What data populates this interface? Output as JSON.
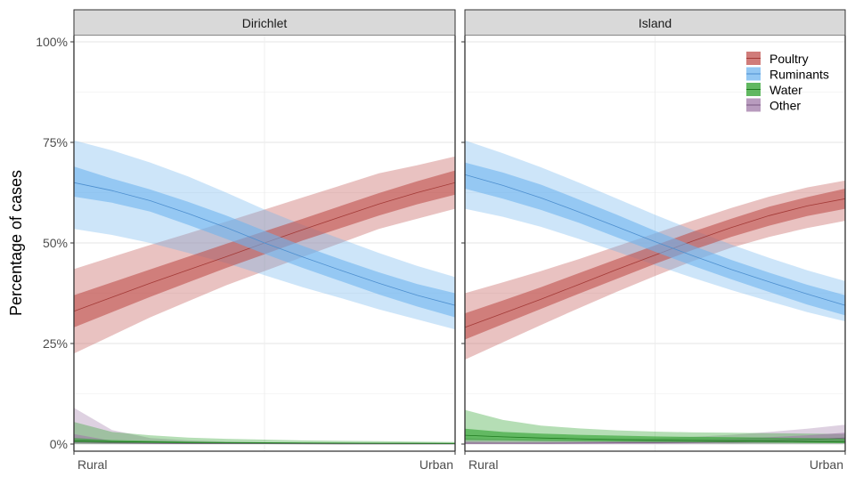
{
  "chart_data": {
    "type": "area",
    "ylabel": "Percentage of cases",
    "x_categories": [
      "Rural",
      "Urban"
    ],
    "y_ticks": [
      "0%",
      "25%",
      "50%",
      "75%",
      "100%"
    ],
    "y_tick_values": [
      0,
      25,
      50,
      75,
      100
    ],
    "ylim": [
      0,
      100
    ],
    "x": [
      0,
      0.1,
      0.2,
      0.3,
      0.4,
      0.5,
      0.6,
      0.7,
      0.8,
      0.9,
      1.0
    ],
    "legend": {
      "placement": "top-right-inside-second-panel"
    },
    "series_styles": [
      {
        "name": "Poultry",
        "fill": "#c0504d",
        "line": "#a33a37"
      },
      {
        "name": "Ruminants",
        "fill": "#6fb4ef",
        "line": "#4d8fcf"
      },
      {
        "name": "Water",
        "fill": "#2ca02c",
        "line": "#1f7a1f"
      },
      {
        "name": "Other",
        "fill": "#a07aa8",
        "line": "#7a5a82"
      }
    ],
    "panels": [
      {
        "title": "Dirichlet",
        "series": [
          {
            "name": "Poultry",
            "mid": [
              33,
              36.5,
              40,
              43.3,
              46.6,
              50,
              53.3,
              56.5,
              59.7,
              62.5,
              65
            ],
            "inner_lo": [
              29,
              32.8,
              36.6,
              40.2,
              43.8,
              47.2,
              50.6,
              53.7,
              56.8,
              59.6,
              62
            ],
            "inner_hi": [
              37,
              40.2,
              43.4,
              46.6,
              49.8,
              52.9,
              56,
              59.2,
              62.4,
              65.3,
              68
            ],
            "outer_lo": [
              22.5,
              27,
              31.5,
              35.5,
              39.5,
              43,
              46.5,
              50,
              53.5,
              56,
              58.5
            ],
            "outer_hi": [
              43.5,
              46.5,
              49.5,
              52.4,
              55.3,
              58.3,
              61.3,
              64.3,
              67.3,
              69.3,
              71.5
            ]
          },
          {
            "name": "Ruminants",
            "mid": [
              65,
              63,
              60.5,
              57.3,
              53.8,
              50,
              46.5,
              43.2,
              40,
              37,
              34.5
            ],
            "inner_lo": [
              61.5,
              60,
              57.8,
              54.5,
              51,
              47.3,
              43.8,
              40.5,
              37.2,
              34.2,
              31.5
            ],
            "inner_hi": [
              69,
              66,
              63.3,
              60.2,
              56.8,
              53,
              49.3,
              45.9,
              42.7,
              39.8,
              37.5
            ],
            "outer_lo": [
              53.5,
              52,
              50,
              47.5,
              45,
              42,
              39,
              36.3,
              33.5,
              31,
              28.5
            ],
            "outer_hi": [
              75.5,
              73,
              70,
              66.5,
              62.5,
              58.3,
              54.5,
              51,
              47.5,
              44.3,
              41.5
            ]
          },
          {
            "name": "Water",
            "mid": [
              0.8,
              0.6,
              0.5,
              0.4,
              0.35,
              0.3,
              0.25,
              0.22,
              0.2,
              0.18,
              0.15
            ],
            "inner_lo": [
              0.4,
              0.3,
              0.25,
              0.2,
              0.15,
              0.12,
              0.1,
              0.08,
              0.07,
              0.06,
              0.05
            ],
            "inner_hi": [
              1.5,
              1.0,
              0.8,
              0.6,
              0.5,
              0.45,
              0.4,
              0.35,
              0.3,
              0.28,
              0.25
            ],
            "outer_lo": [
              0.05,
              0.03,
              0.02,
              0.02,
              0.01,
              0.01,
              0.01,
              0.01,
              0.01,
              0.01,
              0.01
            ],
            "outer_hi": [
              5.5,
              3.0,
              2.2,
              1.6,
              1.3,
              1.1,
              0.9,
              0.8,
              0.7,
              0.6,
              0.5
            ]
          },
          {
            "name": "Other",
            "mid": [
              0.5,
              0.3,
              0.2,
              0.15,
              0.1,
              0.08,
              0.06,
              0.05,
              0.04,
              0.03,
              0.02
            ],
            "inner_lo": [
              0.2,
              0.1,
              0.07,
              0.05,
              0.04,
              0.03,
              0.02,
              0.02,
              0.01,
              0.01,
              0.01
            ],
            "inner_hi": [
              2.5,
              0.8,
              0.5,
              0.35,
              0.25,
              0.2,
              0.15,
              0.12,
              0.1,
              0.08,
              0.06
            ],
            "outer_lo": [
              0.0,
              0.0,
              0.0,
              0.0,
              0.0,
              0.0,
              0.0,
              0.0,
              0.0,
              0.0,
              0.0
            ],
            "outer_hi": [
              9.0,
              3.5,
              1.5,
              0.9,
              0.6,
              0.45,
              0.35,
              0.28,
              0.22,
              0.18,
              0.15
            ]
          }
        ]
      },
      {
        "title": "Island",
        "series": [
          {
            "name": "Poultry",
            "mid": [
              29,
              32.5,
              36,
              39.7,
              43.4,
              47,
              50.5,
              53.8,
              56.8,
              59.2,
              61
            ],
            "inner_lo": [
              26,
              29.8,
              33.6,
              37.4,
              41.1,
              44.8,
              48.3,
              51.5,
              54.3,
              56.7,
              58.5
            ],
            "inner_hi": [
              32.5,
              35.7,
              39,
              42.5,
              46,
              49.4,
              52.8,
              56,
              59,
              61.4,
              63.5
            ],
            "outer_lo": [
              21,
              25.3,
              29.6,
              33.8,
              37.9,
              41.8,
              45.5,
              48.8,
              51.5,
              53.7,
              55.5
            ],
            "outer_hi": [
              37.5,
              40.2,
              43,
              46,
              49.2,
              52.4,
              55.6,
              58.7,
              61.5,
              63.8,
              65.5
            ]
          },
          {
            "name": "Ruminants",
            "mid": [
              67,
              64.3,
              61.2,
              57.7,
              54,
              50.3,
              46.8,
              43.4,
              40.3,
              37.3,
              34.5
            ],
            "inner_lo": [
              63.5,
              61,
              58.2,
              55,
              51.4,
              47.8,
              44.3,
              41,
              37.8,
              34.7,
              32
            ],
            "inner_hi": [
              70,
              67.5,
              64.5,
              60.8,
              57,
              53,
              49.3,
              45.8,
              42.6,
              39.6,
              37
            ],
            "outer_lo": [
              58.5,
              56.5,
              54,
              51,
              47.8,
              44.5,
              41.3,
              38.3,
              35.5,
              32.8,
              30.5
            ],
            "outer_hi": [
              75.5,
              72.3,
              68.8,
              65,
              61,
              57,
              53.2,
              49.6,
              46.3,
              43.2,
              40.5
            ]
          },
          {
            "name": "Water",
            "mid": [
              2.2,
              1.8,
              1.5,
              1.3,
              1.1,
              1.0,
              0.9,
              0.8,
              0.7,
              0.6,
              0.5
            ],
            "inner_lo": [
              1.0,
              0.9,
              0.8,
              0.7,
              0.6,
              0.5,
              0.45,
              0.4,
              0.35,
              0.3,
              0.25
            ],
            "inner_hi": [
              3.8,
              3.0,
              2.6,
              2.3,
              2.1,
              1.9,
              1.8,
              1.7,
              1.6,
              1.5,
              1.4
            ],
            "outer_lo": [
              0.2,
              0.2,
              0.2,
              0.2,
              0.2,
              0.15,
              0.15,
              0.1,
              0.1,
              0.1,
              0.1
            ],
            "outer_hi": [
              8.5,
              6.0,
              4.6,
              3.9,
              3.4,
              3.1,
              2.9,
              2.8,
              2.7,
              2.6,
              2.5
            ]
          },
          {
            "name": "Other",
            "mid": [
              0.2,
              0.2,
              0.2,
              0.25,
              0.3,
              0.35,
              0.45,
              0.6,
              0.8,
              1.1,
              1.5
            ],
            "inner_lo": [
              0.05,
              0.05,
              0.05,
              0.05,
              0.08,
              0.1,
              0.15,
              0.2,
              0.3,
              0.45,
              0.6
            ],
            "inner_hi": [
              0.6,
              0.5,
              0.5,
              0.55,
              0.65,
              0.8,
              1.0,
              1.3,
              1.7,
              2.2,
              2.8
            ],
            "outer_lo": [
              0.0,
              0.0,
              0.0,
              0.0,
              0.0,
              0.0,
              0.0,
              0.0,
              0.0,
              0.0,
              0.0
            ],
            "outer_hi": [
              1.5,
              1.2,
              1.1,
              1.1,
              1.3,
              1.5,
              1.8,
              2.3,
              3.0,
              3.8,
              4.8
            ]
          }
        ]
      }
    ]
  }
}
